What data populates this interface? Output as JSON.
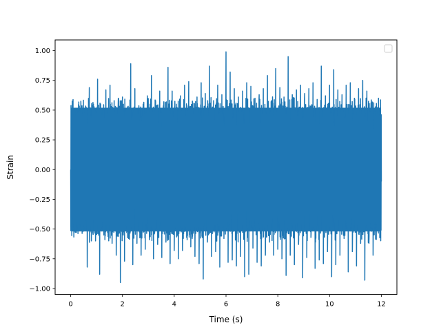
{
  "chart_data": {
    "type": "line",
    "title": "",
    "xlabel": "Time (s)",
    "ylabel": "Strain",
    "xlim": [
      -0.6,
      12.6
    ],
    "ylim": [
      -1.05,
      1.09
    ],
    "x_ticks": [
      0,
      2,
      4,
      6,
      8,
      10,
      12
    ],
    "x_tick_labels": [
      "0",
      "2",
      "4",
      "6",
      "8",
      "10",
      "12"
    ],
    "y_ticks": [
      -1.0,
      -0.75,
      -0.5,
      -0.25,
      0.0,
      0.25,
      0.5,
      0.75,
      1.0
    ],
    "y_tick_labels": [
      "−1.00",
      "−0.75",
      "−0.50",
      "−0.25",
      "0.00",
      "0.25",
      "0.50",
      "0.75",
      "1.00"
    ],
    "grid": false,
    "legend": {
      "placement": "top-right",
      "entries": []
    },
    "series": [
      {
        "color": "#1f77b4",
        "x_range": [
          0,
          12
        ],
        "values": [
          0.0,
          0.22,
          -0.18,
          0.4,
          -0.35,
          0.5,
          -0.52,
          0.31,
          -0.82,
          0.69,
          -0.6,
          0.55,
          -0.6,
          0.76,
          -0.88,
          0.41,
          -0.55,
          0.67,
          -0.45,
          0.71,
          -0.62,
          0.58,
          -0.72,
          0.6,
          -0.95,
          0.61,
          -0.77,
          0.51,
          -0.58,
          0.89,
          -0.8,
          0.68,
          -0.62,
          0.49,
          -0.72,
          0.55,
          -0.67,
          0.62,
          -0.59,
          0.79,
          -0.75,
          0.58,
          -0.63,
          0.66,
          -0.74,
          0.57,
          -0.61,
          0.86,
          -0.79,
          0.66,
          -0.68,
          0.55,
          -0.75,
          0.62,
          -0.68,
          0.71,
          -0.57,
          0.74,
          -0.65,
          0.56,
          -0.73,
          0.61,
          -0.79,
          0.73,
          -0.92,
          0.64,
          -0.61,
          0.87,
          -0.73,
          0.58,
          -0.69,
          0.71,
          -0.82,
          0.63,
          -0.58,
          0.99,
          -0.78,
          0.82,
          -0.76,
          0.68,
          -0.81,
          0.61,
          -0.73,
          0.66,
          -0.9,
          0.73,
          -0.88,
          0.7,
          -0.66,
          0.6,
          -0.78,
          0.63,
          -0.81,
          0.68,
          -0.72,
          0.79,
          -0.61,
          0.58,
          -0.72,
          0.85,
          -0.67,
          0.69,
          -0.75,
          0.61,
          -0.89,
          0.95,
          -0.72,
          0.63,
          -0.8,
          0.67,
          -0.63,
          0.71,
          -0.91,
          0.64,
          -0.74,
          0.68,
          -0.57,
          0.73,
          -0.83,
          0.59,
          -0.76,
          0.87,
          -0.79,
          0.62,
          -0.69,
          0.71,
          -0.9,
          0.84,
          -0.8,
          0.67,
          -0.72,
          0.63,
          -0.58,
          0.71,
          -0.86,
          0.73,
          -0.69,
          0.6,
          -0.81,
          0.68,
          -0.62,
          0.75,
          -0.93,
          0.66,
          -0.62,
          0.56,
          -0.72,
          0.45,
          -0.3,
          0.25,
          -0.1
        ]
      }
    ]
  }
}
